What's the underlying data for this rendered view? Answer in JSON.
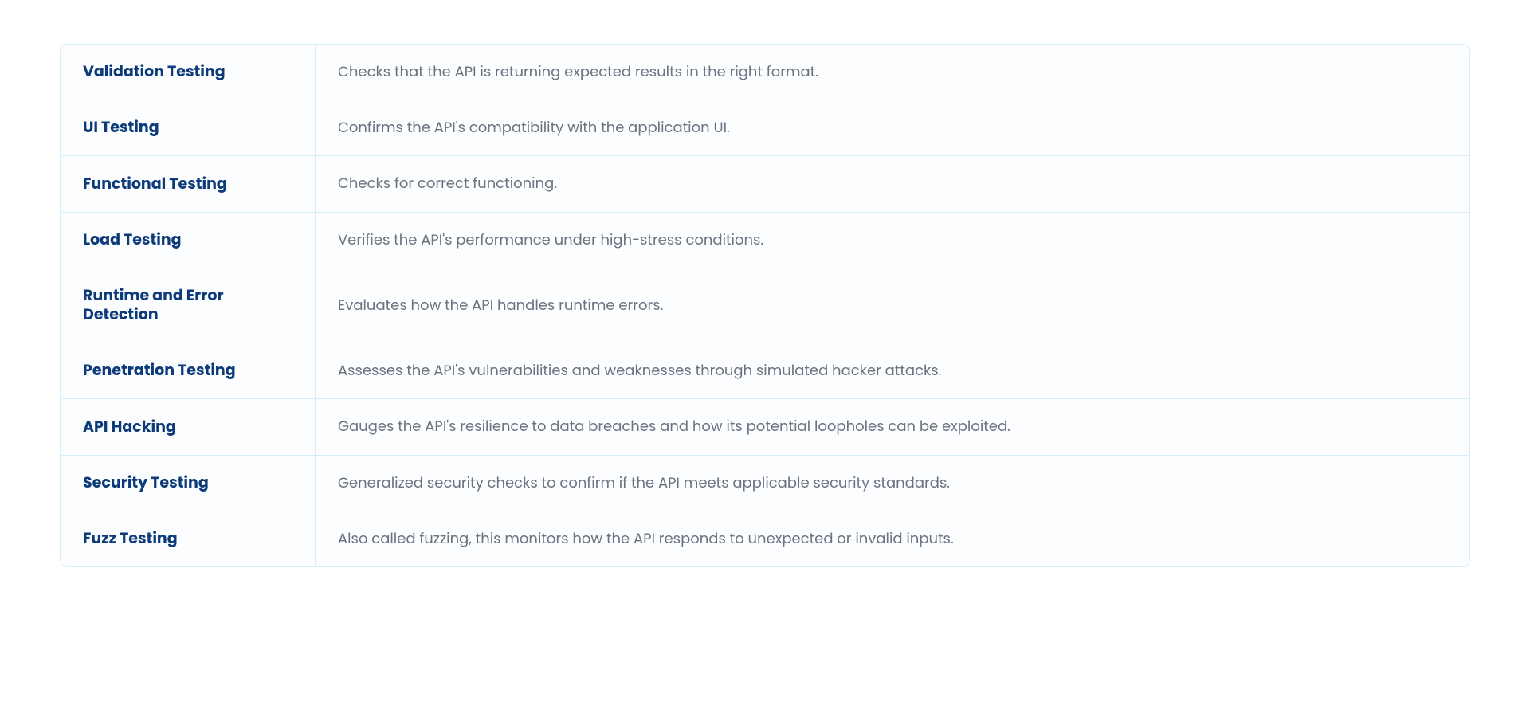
{
  "table": {
    "type": "table",
    "border_color": "#d6ecf9",
    "border_radius": 10,
    "background_color": "#fbfdff",
    "term_color": "#0d3b7a",
    "term_font_weight": 700,
    "term_font_size": 19,
    "description_color": "#6b7280",
    "description_font_size": 18,
    "term_column_width": 320,
    "cell_padding": "22px 28px",
    "rows": [
      {
        "term": "Validation Testing",
        "description": "Checks that the API is returning expected results in the right format."
      },
      {
        "term": "UI Testing",
        "description": "Confirms the API's compatibility with the application UI."
      },
      {
        "term": "Functional Testing",
        "description": "Checks for correct functioning."
      },
      {
        "term": "Load Testing",
        "description": "Verifies the API's performance under high-stress conditions."
      },
      {
        "term": "Runtime and Error Detection",
        "description": "Evaluates how the API handles runtime errors."
      },
      {
        "term": "Penetration Testing",
        "description": "Assesses the API's vulnerabilities and weaknesses through simulated hacker attacks."
      },
      {
        "term": "API Hacking",
        "description": "Gauges the API's resilience to data breaches and how its potential loopholes can be exploited."
      },
      {
        "term": "Security Testing",
        "description": "Generalized security checks to confirm if the API meets applicable security standards."
      },
      {
        "term": "Fuzz Testing",
        "description": "Also called fuzzing, this monitors how the API responds to unexpected or invalid inputs."
      }
    ]
  }
}
